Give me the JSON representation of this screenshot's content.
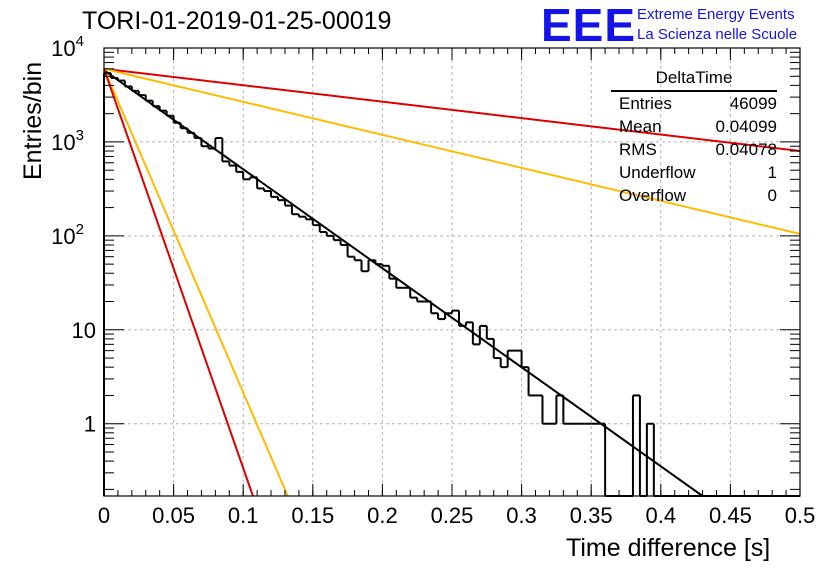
{
  "title": "TORI-01-2019-01-25-00019",
  "logo": {
    "mark": "EEE",
    "line1": "Extreme Energy Events",
    "line2": "La Scienza nelle Scuole",
    "color": "#1414e6"
  },
  "stats": {
    "name": "DeltaTime",
    "rows": [
      {
        "label": "Entries",
        "value": "46099"
      },
      {
        "label": "Mean",
        "value": "0.04099"
      },
      {
        "label": "RMS",
        "value": "0.04078"
      },
      {
        "label": "Underflow",
        "value": "1"
      },
      {
        "label": "Overflow",
        "value": "0"
      }
    ]
  },
  "chart_data": {
    "type": "bar",
    "style": "step-histogram",
    "xlabel": "Time difference [s]",
    "ylabel": "Entries/bin",
    "xlim": [
      0,
      0.5
    ],
    "ylim": [
      0.17,
      10000
    ],
    "yscale": "log",
    "grid": true,
    "x_ticks": [
      "0",
      "0.05",
      "0.1",
      "0.15",
      "0.2",
      "0.25",
      "0.3",
      "0.35",
      "0.4",
      "0.45",
      "0.5"
    ],
    "x_tick_values": [
      0,
      0.05,
      0.1,
      0.15,
      0.2,
      0.25,
      0.3,
      0.35,
      0.4,
      0.45,
      0.5
    ],
    "y_ticks": [
      {
        "value": 1,
        "base": "1",
        "exp": ""
      },
      {
        "value": 10,
        "base": "10",
        "exp": ""
      },
      {
        "value": 100,
        "base": "10",
        "exp": "2"
      },
      {
        "value": 1000,
        "base": "10",
        "exp": "3"
      },
      {
        "value": 10000,
        "base": "10",
        "exp": "4"
      }
    ],
    "bin_width": 0.005,
    "bin_start": 0,
    "histogram_values": [
      5400,
      4800,
      4500,
      3900,
      3500,
      3150,
      2750,
      2400,
      2150,
      1900,
      1600,
      1400,
      1250,
      1100,
      900,
      850,
      1100,
      620,
      560,
      480,
      400,
      420,
      320,
      300,
      260,
      240,
      210,
      170,
      160,
      150,
      130,
      110,
      100,
      90,
      80,
      60,
      55,
      42,
      55,
      50,
      48,
      35,
      28,
      28,
      22,
      20,
      20,
      15,
      13,
      15,
      16,
      11,
      12,
      7,
      11,
      8,
      5,
      4,
      6,
      6,
      4,
      2,
      2,
      1,
      1,
      2,
      1,
      1,
      1,
      1,
      1,
      1,
      0,
      0,
      0,
      0,
      2,
      0,
      1,
      0,
      0,
      0,
      0,
      0,
      0,
      0,
      0,
      0,
      0,
      0,
      0,
      0,
      0,
      0,
      0,
      0,
      0,
      0,
      0,
      0
    ],
    "fits": [
      {
        "color": "#000000",
        "x0": 0,
        "x1": 0.43,
        "y_at_0": 5800,
        "y_at_x1": 0.17
      },
      {
        "color": "#dd0000",
        "x0": 0,
        "x1": 0.5,
        "y_at_0": 6000,
        "y_at_x1": 800
      },
      {
        "color": "#ffbb00",
        "x0": 0,
        "x1": 0.5,
        "y_at_0": 6000,
        "y_at_x1": 105
      },
      {
        "color": "#ffbb00",
        "x0": 0,
        "x1": 0.132,
        "y_at_0": 6000,
        "y_at_x1": 0.17
      },
      {
        "color": "#dd0000",
        "x0": 0,
        "x1": 0.107,
        "y_at_0": 6000,
        "y_at_x1": 0.17
      }
    ]
  }
}
